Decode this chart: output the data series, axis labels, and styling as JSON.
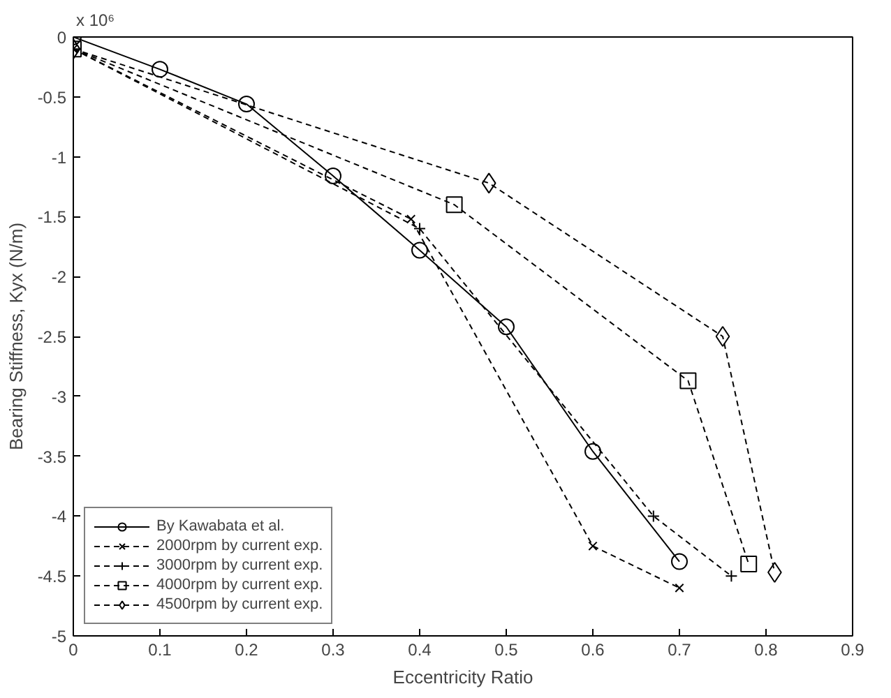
{
  "chart_data": {
    "type": "line",
    "xlabel": "Eccentricity Ratio",
    "ylabel": "Bearing Stiffness, Kyx (N/m)",
    "annotations": [
      "x 10⁶"
    ],
    "xlim": [
      0,
      0.9
    ],
    "xticks": [
      0,
      0.1,
      0.2,
      0.3,
      0.4,
      0.5,
      0.6,
      0.7,
      0.8,
      0.9
    ],
    "ylim": [
      -5,
      0
    ],
    "yticks": [
      -5,
      -4.5,
      -4,
      -3.5,
      -3,
      -2.5,
      -2,
      -1.5,
      -1,
      -0.5,
      0
    ],
    "grid": false,
    "legend": "bottom left",
    "series": [
      {
        "name": "By Kawabata et al.",
        "color": "#000000",
        "marker": "circle",
        "line_style": "solid",
        "x": [
          0,
          0.1,
          0.2,
          0.3,
          0.4,
          0.5,
          0.6,
          0.7
        ],
        "values": [
          0,
          -0.27,
          -0.56,
          -1.16,
          -1.78,
          -2.42,
          -3.46,
          -4.38
        ]
      },
      {
        "name": "2000rpm by current exp.",
        "color": "#000000",
        "marker": "x",
        "line_style": "dashed",
        "x": [
          0,
          0.39,
          0.6,
          0.7
        ],
        "values": [
          -0.1,
          -1.52,
          -4.25,
          -4.6
        ]
      },
      {
        "name": "3000rpm by current exp.",
        "color": "#000000",
        "marker": "cross",
        "line_style": "dashed",
        "x": [
          0,
          0.4,
          0.67,
          0.76
        ],
        "values": [
          -0.1,
          -1.6,
          -4.0,
          -4.5
        ]
      },
      {
        "name": "4000rpm by current exp.",
        "color": "#000000",
        "marker": "square",
        "line_style": "dashed",
        "x": [
          0,
          0.44,
          0.71,
          0.78
        ],
        "values": [
          -0.1,
          -1.4,
          -2.87,
          -4.4
        ]
      },
      {
        "name": "4500rpm by current exp.",
        "color": "#000000",
        "marker": "diamond",
        "line_style": "dashed",
        "x": [
          0,
          0.48,
          0.75,
          0.81
        ],
        "values": [
          -0.1,
          -1.22,
          -2.5,
          -4.47
        ]
      }
    ]
  }
}
